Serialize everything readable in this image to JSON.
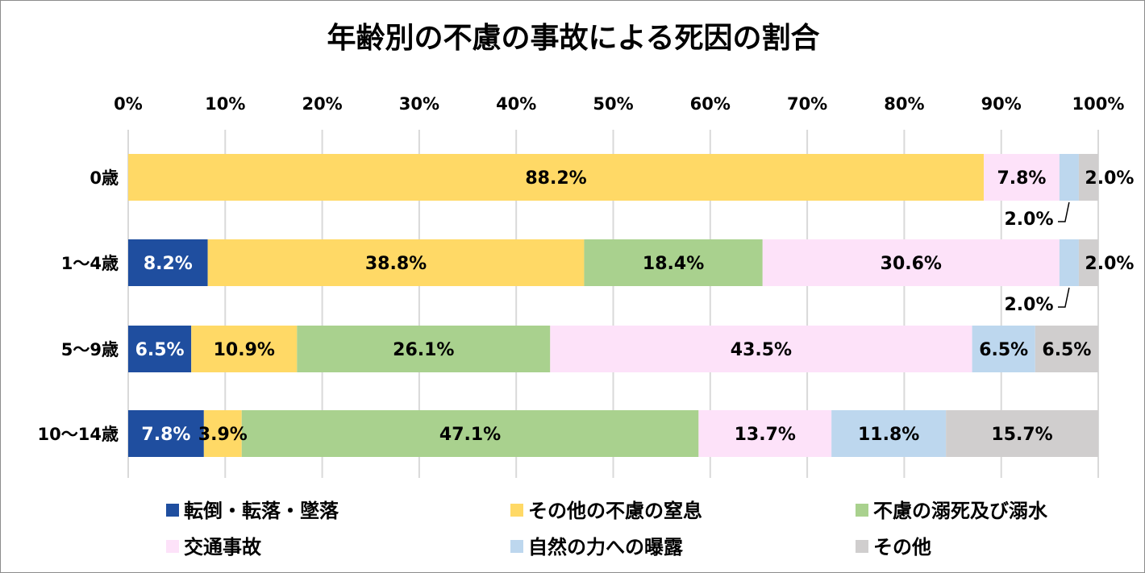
{
  "chart_data": {
    "type": "bar",
    "orientation": "horizontal",
    "stacked": "percent",
    "title": "年齢別の不慮の事故による死因の割合",
    "categories": [
      "0歳",
      "1～4歳",
      "5～9歳",
      "10～14歳"
    ],
    "xlim": [
      0,
      100
    ],
    "x_ticks": [
      "0%",
      "10%",
      "20%",
      "30%",
      "40%",
      "50%",
      "60%",
      "70%",
      "80%",
      "90%",
      "100%"
    ],
    "grid": true,
    "legend_placement": "bottom",
    "series": [
      {
        "name": "転倒・転落・墜落",
        "color": "#1f4e9f",
        "values": [
          0,
          8.2,
          6.5,
          7.8
        ],
        "label_color": "#ffffff"
      },
      {
        "name": "その他の不慮の窒息",
        "color": "#ffd966",
        "values": [
          88.2,
          38.8,
          10.9,
          3.9
        ]
      },
      {
        "name": "不慮の溺死及び溺水",
        "color": "#a9d18e",
        "values": [
          0,
          18.4,
          26.1,
          47.1
        ]
      },
      {
        "name": "交通事故",
        "color": "#fde2f9",
        "values": [
          7.8,
          30.6,
          43.5,
          13.7
        ]
      },
      {
        "name": "自然の力への曝露",
        "color": "#bdd7ee",
        "values": [
          2.0,
          2.0,
          6.5,
          11.8
        ]
      },
      {
        "name": "その他",
        "color": "#d0cece",
        "values": [
          2.0,
          2.0,
          6.5,
          15.7
        ]
      }
    ]
  }
}
